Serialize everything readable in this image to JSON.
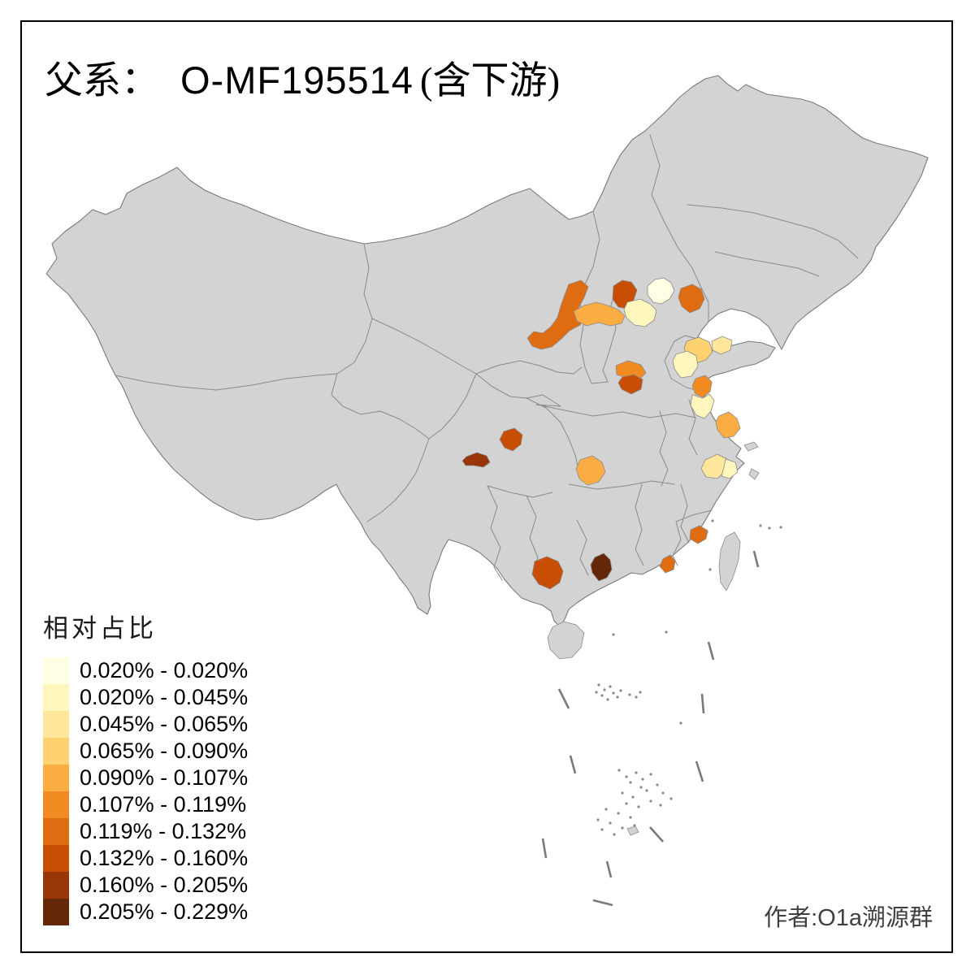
{
  "title": {
    "prefix": "父系：",
    "code": "O-MF195514",
    "suffix": "(含下游)"
  },
  "legend": {
    "title": "相对占比",
    "classes": [
      {
        "range": "0.020% - 0.020%",
        "color": "#FFFEE5"
      },
      {
        "range": "0.020% - 0.045%",
        "color": "#FFF6BE"
      },
      {
        "range": "0.045% - 0.065%",
        "color": "#FEE79B"
      },
      {
        "range": "0.065% - 0.090%",
        "color": "#FED171"
      },
      {
        "range": "0.090% - 0.107%",
        "color": "#FBAC42"
      },
      {
        "range": "0.107% - 0.119%",
        "color": "#F28A22"
      },
      {
        "range": "0.119% - 0.132%",
        "color": "#E06C12"
      },
      {
        "range": "0.132% - 0.160%",
        "color": "#C84E04"
      },
      {
        "range": "0.160% - 0.205%",
        "color": "#993608"
      },
      {
        "range": "0.205% - 0.229%",
        "color": "#642808"
      }
    ]
  },
  "credit": "作者:O1a溯源群",
  "map": {
    "base_color": "#D3D3D3",
    "border_color": "#8A8A8A",
    "outline_color": "#7A7A7A",
    "ocean_color": "#FFFFFF",
    "frame_color": "#000000",
    "regions": [
      {
        "id": "r01",
        "hint": "inner-mongolia-west",
        "class_index": 6
      },
      {
        "id": "r02",
        "hint": "hebei-northwest-band",
        "class_index": 4
      },
      {
        "id": "r03",
        "hint": "shanxi-north",
        "class_index": 7
      },
      {
        "id": "r04",
        "hint": "beijing",
        "class_index": 0
      },
      {
        "id": "r05",
        "hint": "hebei-central",
        "class_index": 1
      },
      {
        "id": "r06",
        "hint": "hebei-east-coastal",
        "class_index": 6
      },
      {
        "id": "r07",
        "hint": "shandong-north",
        "class_index": 3
      },
      {
        "id": "r08",
        "hint": "shandong-peninsula",
        "class_index": 2
      },
      {
        "id": "r09",
        "hint": "shandong-southwest",
        "class_index": 1
      },
      {
        "id": "r10",
        "hint": "jiangsu-northeast",
        "class_index": 5
      },
      {
        "id": "r11",
        "hint": "jiangsu-pale",
        "class_index": 1
      },
      {
        "id": "r12",
        "hint": "jiangsu-coastal-mid",
        "class_index": 4
      },
      {
        "id": "r13",
        "hint": "zhejiang-north-a",
        "class_index": 2
      },
      {
        "id": "r14",
        "hint": "zhejiang-north-b",
        "class_index": 1
      },
      {
        "id": "r15",
        "hint": "henan-west",
        "class_index": 5
      },
      {
        "id": "r16",
        "hint": "henan-central",
        "class_index": 7
      },
      {
        "id": "r17",
        "hint": "hubei-central",
        "class_index": 4
      },
      {
        "id": "r18",
        "hint": "sichuan-east",
        "class_index": 7
      },
      {
        "id": "r19",
        "hint": "sichuan-south",
        "class_index": 8
      },
      {
        "id": "r20",
        "hint": "guangxi-south",
        "class_index": 7
      },
      {
        "id": "r21",
        "hint": "guangxi-east",
        "class_index": 9
      },
      {
        "id": "r22",
        "hint": "guangdong-east",
        "class_index": 6
      },
      {
        "id": "r23",
        "hint": "fujian-southeast",
        "class_index": 6
      }
    ]
  }
}
